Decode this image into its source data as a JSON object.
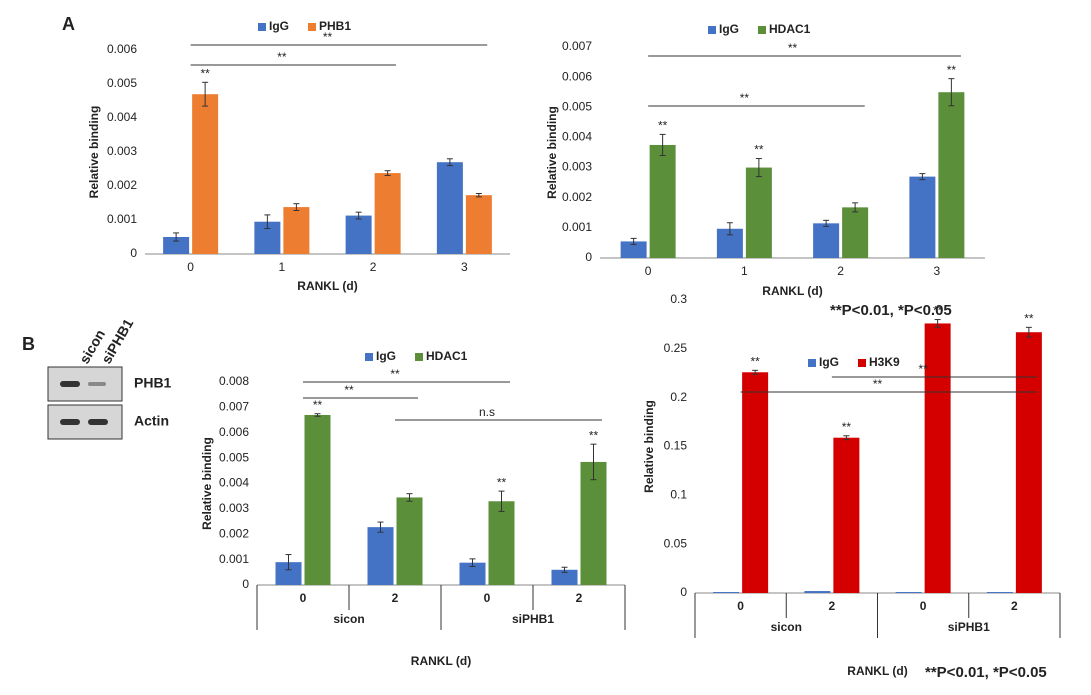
{
  "panels": [
    "A",
    "B"
  ],
  "notes": [
    "**P<0.01, *P<0.05",
    "**P<0.01, *P<0.05"
  ],
  "blot": {
    "lanes": [
      "sicon",
      "siPHB1"
    ],
    "rows": [
      "PHB1",
      "Actin"
    ]
  },
  "chart_data": [
    {
      "type": "bar",
      "x_label": "RANKL (d)",
      "y_label": "Relative binding",
      "categories": [
        "0",
        "1",
        "2",
        "3"
      ],
      "series": [
        {
          "name": "IgG",
          "color": "#4472c4",
          "values": [
            0.0005,
            0.00095,
            0.00113,
            0.0027
          ],
          "errors": [
            0.00012,
            0.0002,
            0.0001,
            0.0001
          ],
          "sig_labels": [
            null,
            null,
            null,
            null
          ]
        },
        {
          "name": "PHB1",
          "color": "#ed7d31",
          "values": [
            0.0047,
            0.00138,
            0.00238,
            0.00173
          ],
          "errors": [
            0.00035,
            0.0001,
            7e-05,
            5e-05
          ],
          "sig_labels": [
            "**",
            null,
            null,
            null
          ]
        }
      ],
      "brackets": [
        {
          "label": "**",
          "between": [
            0,
            3
          ]
        },
        {
          "label": "**",
          "between": [
            0,
            2
          ]
        }
      ],
      "ylim": [
        0,
        0.006
      ],
      "yticks": [
        0,
        0.001,
        0.002,
        0.003,
        0.004,
        0.005,
        0.006
      ],
      "legend": "top"
    },
    {
      "type": "bar",
      "x_label": "RANKL (d)",
      "y_label": "Relative binding",
      "categories": [
        "0",
        "1",
        "2",
        "3"
      ],
      "series": [
        {
          "name": "IgG",
          "color": "#4472c4",
          "values": [
            0.00055,
            0.00097,
            0.00115,
            0.0027
          ],
          "errors": [
            0.0001,
            0.0002,
            0.0001,
            0.0001
          ],
          "sig_labels": [
            null,
            null,
            null,
            null
          ]
        },
        {
          "name": "HDAC1",
          "color": "#5b8f3a",
          "values": [
            0.00375,
            0.003,
            0.00168,
            0.0055
          ],
          "errors": [
            0.00035,
            0.0003,
            0.00015,
            0.00045
          ],
          "sig_labels": [
            "**",
            "**",
            null,
            "**"
          ]
        }
      ],
      "brackets": [
        {
          "label": "**",
          "between": [
            0,
            3
          ]
        },
        {
          "label": "**",
          "between": [
            0,
            2
          ]
        }
      ],
      "ylim": [
        0,
        0.007
      ],
      "yticks": [
        0,
        0.001,
        0.002,
        0.003,
        0.004,
        0.005,
        0.006,
        0.007
      ],
      "legend": "top"
    },
    {
      "type": "bar",
      "x_label": "RANKL (d)",
      "y_label": "Relative binding",
      "categories": [
        "0",
        "2",
        "0",
        "2"
      ],
      "groups": [
        "sicon",
        "siPHB1"
      ],
      "series": [
        {
          "name": "IgG",
          "color": "#4472c4",
          "values": [
            0.0009,
            0.00228,
            0.00088,
            0.0006
          ],
          "errors": [
            0.0003,
            0.0002,
            0.00015,
            0.0001
          ],
          "sig_labels": [
            null,
            null,
            null,
            null
          ]
        },
        {
          "name": "HDAC1",
          "color": "#5b8f3a",
          "values": [
            0.0067,
            0.00345,
            0.0033,
            0.00485
          ],
          "errors": [
            5e-05,
            0.00015,
            0.0004,
            0.0007
          ],
          "sig_labels": [
            "**",
            null,
            "**",
            "**"
          ]
        }
      ],
      "brackets": [
        {
          "label": "**",
          "between": [
            0,
            2
          ]
        },
        {
          "label": "**",
          "between": [
            0,
            1
          ]
        },
        {
          "label": "n.s",
          "between": [
            1,
            3
          ]
        }
      ],
      "ylim": [
        0,
        0.008
      ],
      "yticks": [
        0,
        0.001,
        0.002,
        0.003,
        0.004,
        0.005,
        0.006,
        0.007,
        0.008
      ],
      "legend": "top"
    },
    {
      "type": "bar",
      "x_label": "RANKL (d)",
      "y_label": "Relative binding",
      "categories": [
        "0",
        "2",
        "0",
        "2"
      ],
      "groups": [
        "sicon",
        "siPHB1"
      ],
      "series": [
        {
          "name": "IgG",
          "color": "#4472c4",
          "values": [
            0.001,
            0.002,
            0.001,
            0.001
          ],
          "errors": [
            0,
            0,
            0,
            0
          ],
          "sig_labels": [
            null,
            null,
            null,
            null
          ]
        },
        {
          "name": "H3K9",
          "color": "#d40000",
          "values": [
            0.226,
            0.159,
            0.276,
            0.267
          ],
          "errors": [
            0.002,
            0.002,
            0.004,
            0.005
          ],
          "sig_labels": [
            "**",
            "**",
            "**",
            "**"
          ]
        }
      ],
      "brackets": [
        {
          "label": "**",
          "between": [
            0,
            3
          ]
        },
        {
          "label": "**",
          "between": [
            1,
            3
          ]
        }
      ],
      "ylim": [
        0,
        0.3
      ],
      "yticks": [
        0,
        0.05,
        0.1,
        0.15,
        0.2,
        0.25,
        0.3
      ],
      "legend": "top"
    }
  ]
}
